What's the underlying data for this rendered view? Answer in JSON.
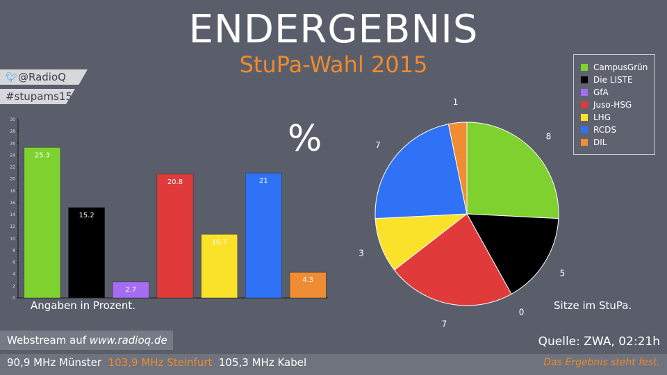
{
  "header": {
    "title": "ENDERGEBNIS",
    "subtitle": "StuPa-Wahl 2015"
  },
  "social": {
    "twitter": "@RadioQ",
    "hashtag": "#stupams15"
  },
  "colors": {
    "background": "#5a5e6b",
    "accent": "#ef8a2e"
  },
  "chart_data": [
    {
      "type": "bar",
      "title": "%",
      "note": "Angaben in Prozent.",
      "categories": [
        "CampusGrün",
        "Die LISTE",
        "GfA",
        "Juso-HSG",
        "LHG",
        "RCDS",
        "DIL"
      ],
      "values": [
        25.3,
        15.2,
        2.7,
        20.8,
        10.7,
        21,
        4.3
      ],
      "value_labels": [
        "25.3",
        "15.2",
        "2.7",
        "20.8",
        "10.7",
        "21",
        "4.3"
      ],
      "colors": [
        "#7ed12f",
        "#000000",
        "#a66cf3",
        "#e13a3a",
        "#fbe22a",
        "#2f72f5",
        "#f08c33"
      ],
      "ylim": [
        0,
        30
      ],
      "yticks": [
        "0",
        "2",
        "4",
        "6",
        "8",
        "10",
        "12",
        "14",
        "16",
        "18",
        "20",
        "22",
        "24",
        "26",
        "28",
        "30"
      ],
      "grid": false
    },
    {
      "type": "pie",
      "note": "Sitze im StuPa.",
      "categories": [
        "CampusGrün",
        "Die LISTE",
        "GfA",
        "Juso-HSG",
        "LHG",
        "RCDS",
        "DIL"
      ],
      "values": [
        8,
        5,
        0,
        7,
        3,
        7,
        1
      ],
      "value_labels": [
        "8",
        "5",
        "0",
        "7",
        "3",
        "7",
        "1"
      ],
      "colors": [
        "#7ed12f",
        "#000000",
        "#a66cf3",
        "#e13a3a",
        "#fbe22a",
        "#2f72f5",
        "#f08c33"
      ],
      "legend_position": "top-right"
    }
  ],
  "footer": {
    "stream_prefix": "Webstream auf ",
    "stream_url": "www.radioq.de",
    "source": "Quelle: ZWA, 02:21h",
    "freq1": "90,9 MHz Münster",
    "freq2": "103,9 MHz Steinfurt",
    "freq3": "105,3 MHz Kabel",
    "final": "Das Ergebnis steht fest."
  }
}
